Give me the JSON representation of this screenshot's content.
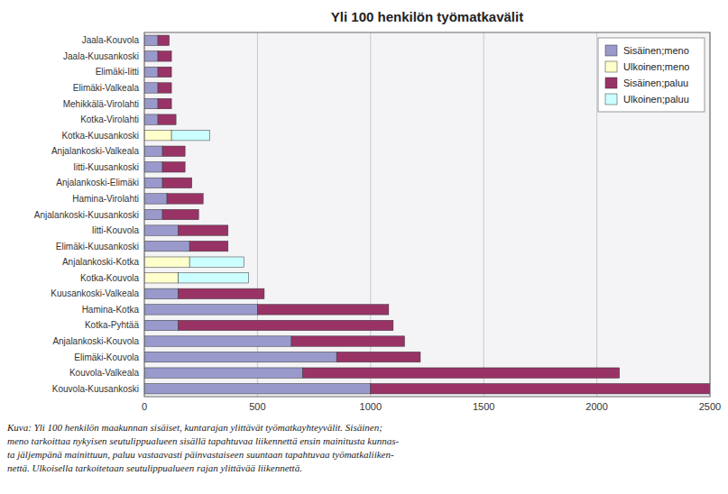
{
  "chart_data": {
    "type": "bar",
    "orientation": "horizontal",
    "stacked": true,
    "title": "Yli 100 henkilön työmatkavälit",
    "caption": "Kuva:  Yli 100 henkilön maakunnan sisäiset, kuntarajan ylittävät työmatkayhteyvälit.  Sisäinen;\nmeno tarkoittaa nykyisen seutulippualueen sisällä tapahtuvaa liikennettä ensin mainitusta kunnas-\nta jäljempänä mainittuun, paluu vastaavasti päinvastaiseen suuntaan tapahtuvaa työmatkaliiken-\nnettä.  Ulkoisella tarkoitetaan seutulippualueen rajan ylittävää liikennettä.",
    "categories": [
      "Kouvola-Kuusankoski",
      "Kouvola-Valkeala",
      "Elimäki-Kouvola",
      "Anjalankoski-Kouvola",
      "Kotka-Pyhtää",
      "Hamina-Kotka",
      "Kuusankoski-Valkeala",
      "Kotka-Kouvola",
      "Anjalankoski-Kotka",
      "Elimäki-Kuusankoski",
      "Iitti-Kouvola",
      "Anjalankoski-Kuusankoski",
      "Hamina-Virolahti",
      "Anjalankoski-Elimäki",
      "Iitti-Kuusankoski",
      "Anjalankoski-Valkeala",
      "Kotka-Kuusankoski",
      "Kotka-Virolahti",
      "Mehikkälä-Virolahti",
      "Elimäki-Valkeala",
      "Elimäki-Iitti",
      "Jaala-Kuusankoski",
      "Jaala-Kouvola"
    ],
    "series": [
      {
        "name": "Sisäinen;meno",
        "color": "#9999cc",
        "values": [
          1000,
          700,
          850,
          650,
          150,
          500,
          150,
          0,
          0,
          200,
          150,
          80,
          100,
          80,
          80,
          80,
          0,
          60,
          60,
          60,
          60,
          60,
          60
        ]
      },
      {
        "name": "Ulkoinen;meno",
        "color": "#ffffcc",
        "values": [
          0,
          0,
          0,
          0,
          0,
          0,
          0,
          150,
          200,
          0,
          0,
          0,
          0,
          0,
          0,
          0,
          120,
          0,
          0,
          0,
          0,
          0,
          0
        ]
      },
      {
        "name": "Sisäinen;paluu",
        "color": "#993366",
        "values": [
          1500,
          1400,
          370,
          500,
          950,
          580,
          380,
          0,
          0,
          170,
          220,
          160,
          160,
          130,
          100,
          100,
          0,
          80,
          60,
          60,
          60,
          60,
          50
        ]
      },
      {
        "name": "Ulkoinen;paluu",
        "color": "#ccffff",
        "values": [
          0,
          0,
          0,
          0,
          0,
          0,
          0,
          310,
          240,
          0,
          0,
          0,
          0,
          0,
          0,
          0,
          170,
          0,
          0,
          0,
          0,
          0,
          0
        ]
      }
    ],
    "xlim": [
      0,
      2500
    ],
    "xticks": [
      0,
      500,
      1000,
      1500,
      2000,
      2500
    ],
    "grid": true,
    "legend": "upper right"
  }
}
